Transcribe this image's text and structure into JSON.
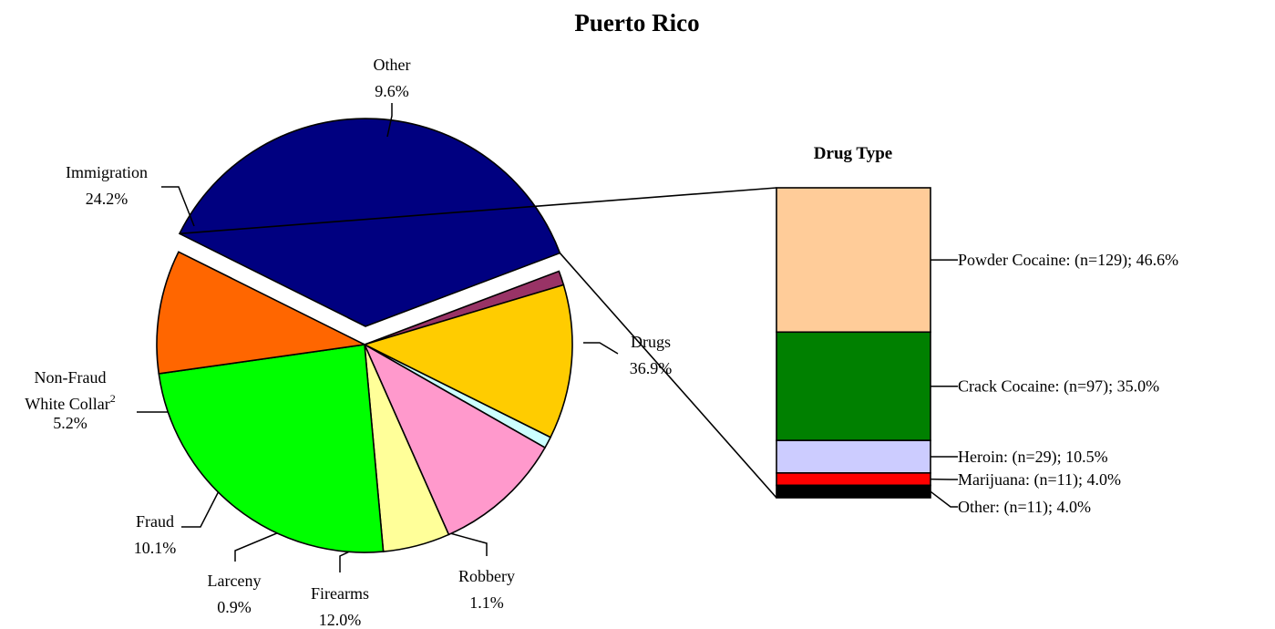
{
  "chart_data": [
    {
      "type": "pie",
      "title": "Puerto Rico",
      "slices": [
        {
          "label": "Drugs",
          "pct_label": "36.9%",
          "value": 36.9,
          "color": "#000080",
          "exploded": true
        },
        {
          "label": "Robbery",
          "pct_label": "1.1%",
          "value": 1.1,
          "color": "#993366"
        },
        {
          "label": "Firearms",
          "pct_label": "12.0%",
          "value": 12.0,
          "color": "#FFCC00"
        },
        {
          "label": "Larceny",
          "pct_label": "0.9%",
          "value": 0.9,
          "color": "#CCFFFF"
        },
        {
          "label": "Fraud",
          "pct_label": "10.1%",
          "value": 10.1,
          "color": "#FF99CC"
        },
        {
          "label_lines": [
            "Non-Fraud",
            "White Collar"
          ],
          "superscript": "2",
          "pct_label": "5.2%",
          "value": 5.2,
          "color": "#FFFF99"
        },
        {
          "label": "Immigration",
          "pct_label": "24.2%",
          "value": 24.2,
          "color": "#00FF00"
        },
        {
          "label": "Other",
          "pct_label": "9.6%",
          "value": 9.6,
          "color": "#FF6600"
        }
      ]
    },
    {
      "type": "bar",
      "stacked": true,
      "title": "Drug Type",
      "segments": [
        {
          "label": "Powder Cocaine:  (n=129); 46.6%",
          "value": 46.6,
          "n": 129,
          "color": "#FFCC99"
        },
        {
          "label": "Crack Cocaine:  (n=97); 35.0%",
          "value": 35.0,
          "n": 97,
          "color": "#008000"
        },
        {
          "label": "Heroin:  (n=29); 10.5%",
          "value": 10.5,
          "n": 29,
          "color": "#CCCCFF"
        },
        {
          "label": "Marijuana:  (n=11); 4.0%",
          "value": 4.0,
          "n": 11,
          "color": "#FF0000"
        },
        {
          "label": "Other:  (n=11); 4.0%",
          "value": 4.0,
          "n": 11,
          "color": "#000000"
        }
      ]
    }
  ]
}
